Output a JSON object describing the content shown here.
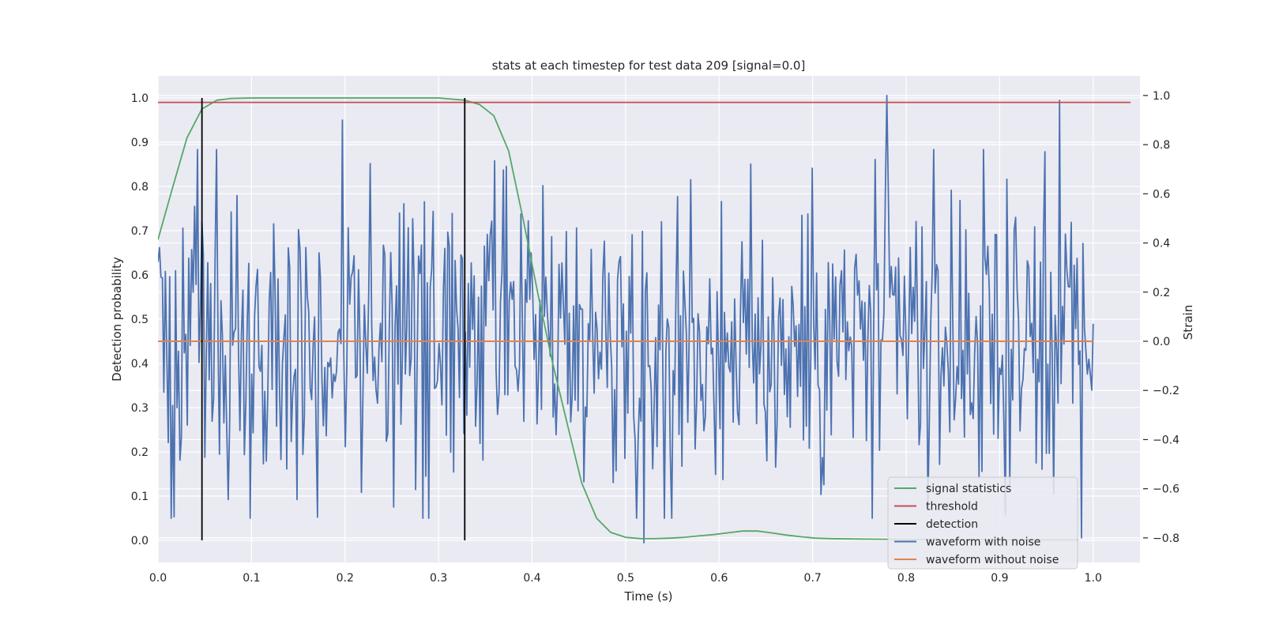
{
  "chart_data": {
    "type": "line",
    "title": "stats at each timestep for test data 209 [signal=0.0]",
    "xlabel": "Time (s)",
    "ylabel": "Detection probability",
    "ylabel_right": "Strain",
    "xlim": [
      0.0,
      1.05
    ],
    "ylim": [
      -0.05,
      1.05
    ],
    "ylim_right": [
      -0.9,
      1.08
    ],
    "xticks": [
      0.0,
      0.1,
      0.2,
      0.3,
      0.4,
      0.5,
      0.6,
      0.7,
      0.8,
      0.9,
      1.0
    ],
    "xtick_labels": [
      "0.0",
      "0.1",
      "0.2",
      "0.3",
      "0.4",
      "0.5",
      "0.6",
      "0.7",
      "0.8",
      "0.9",
      "1.0"
    ],
    "yticks": [
      0.0,
      0.1,
      0.2,
      0.3,
      0.4,
      0.5,
      0.6,
      0.7,
      0.8,
      0.9,
      1.0
    ],
    "ytick_labels": [
      "0.0",
      "0.1",
      "0.2",
      "0.3",
      "0.4",
      "0.5",
      "0.6",
      "0.7",
      "0.8",
      "0.9",
      "1.0"
    ],
    "yticks_right": [
      -0.8,
      -0.6,
      -0.4,
      -0.2,
      0.0,
      0.2,
      0.4,
      0.6,
      0.8,
      1.0
    ],
    "ytick_labels_right": [
      "−0.8",
      "−0.6",
      "−0.4",
      "−0.2",
      "0.0",
      "0.2",
      "0.4",
      "0.6",
      "0.8",
      "1.0"
    ],
    "grid": true,
    "legend_position": "lower-right",
    "colors": {
      "signal_statistics": "#55a868",
      "threshold": "#c44e52",
      "detection": "#000000",
      "waveform_with_noise": "#4c72b0",
      "waveform_without_noise": "#dd8452",
      "plot_background": "#eaeaf2",
      "grid": "#ffffff"
    },
    "series": [
      {
        "name": "signal statistics",
        "axis": "left",
        "x": [
          0.0,
          0.016,
          0.031,
          0.047,
          0.063,
          0.078,
          0.1,
          0.15,
          0.2,
          0.25,
          0.3,
          0.328,
          0.344,
          0.359,
          0.375,
          0.391,
          0.406,
          0.422,
          0.438,
          0.453,
          0.469,
          0.484,
          0.5,
          0.516,
          0.531,
          0.547,
          0.563,
          0.578,
          0.594,
          0.609,
          0.625,
          0.641,
          0.656,
          0.672,
          0.688,
          0.703,
          0.719,
          0.75,
          0.8,
          0.85,
          0.9,
          0.95,
          0.984
        ],
        "y": [
          0.68,
          0.8,
          0.91,
          0.975,
          0.995,
          0.999,
          1.0,
          1.0,
          1.0,
          1.0,
          1.0,
          0.995,
          0.985,
          0.96,
          0.88,
          0.72,
          0.56,
          0.4,
          0.26,
          0.13,
          0.05,
          0.018,
          0.007,
          0.004,
          0.004,
          0.005,
          0.007,
          0.01,
          0.013,
          0.017,
          0.021,
          0.021,
          0.017,
          0.012,
          0.008,
          0.005,
          0.004,
          0.003,
          0.002,
          0.002,
          0.002,
          0.001,
          0.001
        ]
      },
      {
        "name": "threshold",
        "axis": "left",
        "x": [
          0.0,
          1.04
        ],
        "y": [
          0.99,
          0.99
        ]
      },
      {
        "name": "detection",
        "axis": "left",
        "x": [
          0.047,
          0.328
        ],
        "y_range": [
          0.0,
          1.0
        ]
      },
      {
        "name": "waveform with noise",
        "axis": "right",
        "x_range": [
          0.0,
          1.0
        ],
        "n_points": 640,
        "noise_std": 0.3,
        "seed": 209,
        "peaks": [
          {
            "x": 0.779,
            "y": 1.0
          },
          {
            "x": 0.964,
            "y": 0.98
          },
          {
            "x": 0.197,
            "y": 0.9
          },
          {
            "x": 0.519,
            "y": -0.82
          },
          {
            "x": 0.988,
            "y": -0.8
          },
          {
            "x": 0.29,
            "y": -0.72
          }
        ]
      },
      {
        "name": "waveform without noise",
        "axis": "right",
        "x": [
          0.0,
          1.0
        ],
        "y": [
          0.0,
          0.0
        ]
      }
    ]
  }
}
